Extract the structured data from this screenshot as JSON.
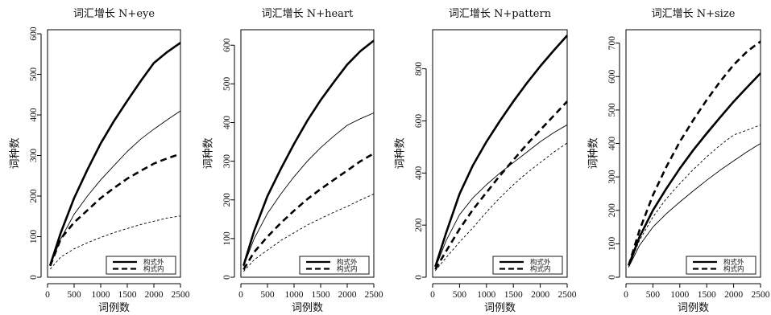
{
  "chart_data": [
    {
      "type": "line",
      "title": "词汇增长 N+eye",
      "xlabel": "词例数",
      "ylabel": "词种数",
      "xlim": [
        0,
        2500
      ],
      "ylim": [
        0,
        610
      ],
      "xticks": [
        0,
        500,
        1000,
        1500,
        2000,
        2500
      ],
      "yticks": [
        0,
        100,
        200,
        300,
        400,
        500,
        600
      ],
      "grid": false,
      "legend_position": "bottom-right",
      "legend": [
        {
          "label": "构式外",
          "style": "solid"
        },
        {
          "label": "构式内",
          "style": "dashed"
        }
      ],
      "series": [
        {
          "style": "solid-thick",
          "x": [
            50,
            250,
            500,
            750,
            1000,
            1250,
            1500,
            1750,
            2000,
            2250,
            2500
          ],
          "y": [
            30,
            110,
            195,
            265,
            330,
            385,
            435,
            483,
            528,
            555,
            578
          ]
        },
        {
          "style": "solid-thin",
          "x": [
            50,
            250,
            500,
            750,
            1000,
            1250,
            1500,
            1750,
            2000,
            2250,
            2500
          ],
          "y": [
            28,
            95,
            155,
            200,
            240,
            275,
            310,
            340,
            365,
            388,
            410
          ]
        },
        {
          "style": "dashed-thick",
          "x": [
            50,
            250,
            500,
            750,
            1000,
            1250,
            1500,
            1750,
            2000,
            2250,
            2500
          ],
          "y": [
            28,
            95,
            135,
            165,
            195,
            220,
            243,
            262,
            280,
            293,
            304
          ]
        },
        {
          "style": "dashed-thin",
          "x": [
            50,
            250,
            500,
            750,
            1000,
            1250,
            1500,
            1750,
            2000,
            2250,
            2500
          ],
          "y": [
            20,
            50,
            70,
            85,
            98,
            110,
            120,
            130,
            138,
            146,
            151
          ]
        }
      ]
    },
    {
      "type": "line",
      "title": "词汇增长 N+heart",
      "xlabel": "词例数",
      "ylabel": "词种数",
      "xlim": [
        0,
        2500
      ],
      "ylim": [
        0,
        640
      ],
      "xticks": [
        0,
        500,
        1000,
        1500,
        2000,
        2500
      ],
      "yticks": [
        0,
        100,
        200,
        300,
        400,
        500,
        600
      ],
      "grid": false,
      "legend_position": "bottom-right",
      "legend": [
        {
          "label": "构式外",
          "style": "solid"
        },
        {
          "label": "构式内",
          "style": "dashed"
        }
      ],
      "series": [
        {
          "style": "solid-thick",
          "x": [
            50,
            250,
            500,
            750,
            1000,
            1250,
            1500,
            1750,
            2000,
            2250,
            2500
          ],
          "y": [
            30,
            120,
            210,
            280,
            345,
            405,
            458,
            505,
            550,
            585,
            612
          ]
        },
        {
          "style": "solid-thin",
          "x": [
            50,
            250,
            500,
            750,
            1000,
            1250,
            1500,
            1750,
            2000,
            2250,
            2500
          ],
          "y": [
            28,
            100,
            165,
            215,
            260,
            300,
            335,
            365,
            393,
            410,
            425
          ]
        },
        {
          "style": "dashed-thick",
          "x": [
            50,
            250,
            500,
            750,
            1000,
            1250,
            1500,
            1750,
            2000,
            2250,
            2500
          ],
          "y": [
            20,
            65,
            105,
            140,
            172,
            202,
            228,
            252,
            276,
            300,
            320
          ]
        },
        {
          "style": "dashed-thin",
          "x": [
            50,
            250,
            500,
            750,
            1000,
            1250,
            1500,
            1750,
            2000,
            2250,
            2500
          ],
          "y": [
            15,
            45,
            70,
            95,
            115,
            135,
            152,
            168,
            183,
            200,
            215
          ]
        }
      ]
    },
    {
      "type": "line",
      "title": "词汇增长 N+pattern",
      "xlabel": "词例数",
      "ylabel": "词种数",
      "xlim": [
        0,
        2500
      ],
      "ylim": [
        0,
        950
      ],
      "xticks": [
        0,
        500,
        1000,
        1500,
        2000,
        2500
      ],
      "yticks": [
        0,
        200,
        400,
        600,
        800
      ],
      "grid": false,
      "legend_position": "bottom-right",
      "legend": [
        {
          "label": "构式外",
          "style": "solid"
        },
        {
          "label": "构式内",
          "style": "dashed"
        }
      ],
      "series": [
        {
          "style": "solid-thick",
          "x": [
            50,
            250,
            500,
            750,
            1000,
            1250,
            1500,
            1750,
            2000,
            2250,
            2500
          ],
          "y": [
            40,
            170,
            320,
            430,
            520,
            600,
            675,
            745,
            810,
            870,
            928
          ]
        },
        {
          "style": "solid-thin",
          "x": [
            50,
            250,
            500,
            750,
            1000,
            1250,
            1500,
            1750,
            2000,
            2250,
            2500
          ],
          "y": [
            35,
            140,
            240,
            305,
            355,
            400,
            440,
            480,
            520,
            555,
            585
          ]
        },
        {
          "style": "dashed-thick",
          "x": [
            50,
            250,
            500,
            750,
            1000,
            1250,
            1500,
            1750,
            2000,
            2250,
            2500
          ],
          "y": [
            30,
            100,
            185,
            260,
            325,
            390,
            450,
            510,
            565,
            620,
            675
          ]
        },
        {
          "style": "dashed-thin",
          "x": [
            50,
            250,
            500,
            750,
            1000,
            1250,
            1500,
            1750,
            2000,
            2250,
            2500
          ],
          "y": [
            25,
            75,
            135,
            190,
            250,
            305,
            355,
            400,
            440,
            480,
            515
          ]
        }
      ]
    },
    {
      "type": "line",
      "title": "词汇增长 N+size",
      "xlabel": "词例数",
      "ylabel": "词种数",
      "xlim": [
        0,
        2500
      ],
      "ylim": [
        0,
        740
      ],
      "xticks": [
        0,
        500,
        1000,
        1500,
        2000,
        2500
      ],
      "yticks": [
        0,
        100,
        200,
        300,
        400,
        500,
        600,
        700
      ],
      "grid": false,
      "legend_position": "bottom-right",
      "legend": [
        {
          "label": "构式外",
          "style": "solid"
        },
        {
          "label": "构式内",
          "style": "dashed"
        }
      ],
      "series": [
        {
          "style": "solid-thick",
          "x": [
            50,
            250,
            500,
            750,
            1000,
            1250,
            1500,
            1750,
            2000,
            2250,
            2500
          ],
          "y": [
            35,
            120,
            200,
            265,
            325,
            380,
            430,
            478,
            525,
            568,
            610
          ]
        },
        {
          "style": "solid-thin",
          "x": [
            50,
            250,
            500,
            750,
            1000,
            1250,
            1500,
            1750,
            2000,
            2250,
            2500
          ],
          "y": [
            30,
            95,
            150,
            190,
            225,
            258,
            290,
            320,
            348,
            375,
            400
          ]
        },
        {
          "style": "dashed-thick",
          "x": [
            50,
            250,
            500,
            750,
            1000,
            1250,
            1500,
            1750,
            2000,
            2250,
            2500
          ],
          "y": [
            35,
            140,
            245,
            330,
            405,
            470,
            530,
            585,
            635,
            675,
            705
          ]
        },
        {
          "style": "dashed-thin",
          "x": [
            50,
            250,
            500,
            750,
            1000,
            1250,
            1500,
            1750,
            2000,
            2250,
            2500
          ],
          "y": [
            30,
            110,
            180,
            235,
            280,
            322,
            360,
            395,
            425,
            440,
            455
          ]
        }
      ]
    }
  ]
}
